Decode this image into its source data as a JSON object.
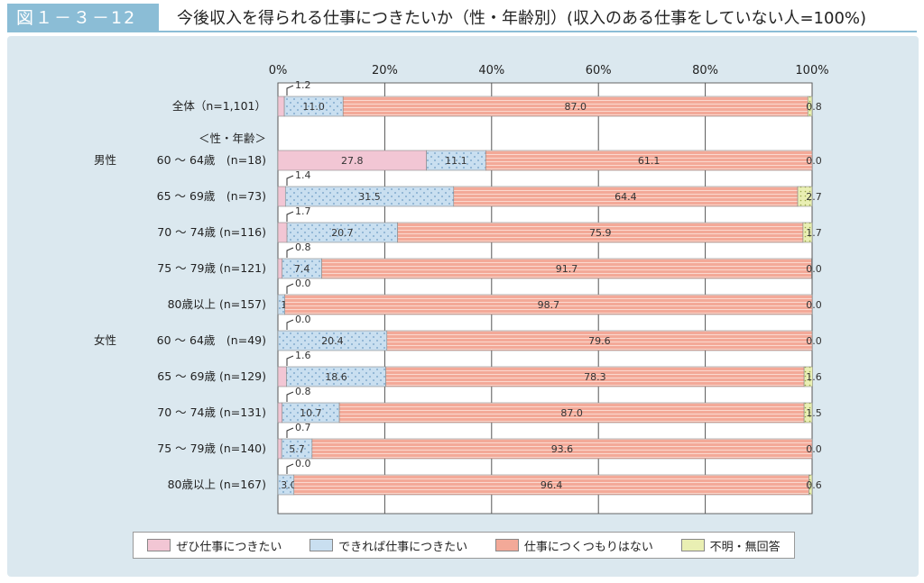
{
  "header": {
    "figure_label": "図１－３－12",
    "title": "今後収入を得られる仕事につきたいか（性・年齢別）(収入のある仕事をしていない人=100%)"
  },
  "colors": {
    "want": "#f2c6d4",
    "if_possible": "#c9dff0",
    "not_want": "#f3a998",
    "unknown": "#e9efb3",
    "panel": "#dbe8ef"
  },
  "legend": [
    {
      "key": "want",
      "label": "ぜひ仕事につきたい"
    },
    {
      "key": "if_possible",
      "label": "できれば仕事につきたい"
    },
    {
      "key": "not_want",
      "label": "仕事につくつもりはない"
    },
    {
      "key": "unknown",
      "label": "不明・無回答"
    }
  ],
  "chart_data": {
    "type": "bar",
    "orientation": "horizontal",
    "stacked": true,
    "xlim": [
      0,
      100
    ],
    "x_ticks": [
      "0%",
      "20%",
      "40%",
      "60%",
      "80%",
      "100%"
    ],
    "section_label": "＜性・年齢＞",
    "series": [
      {
        "name": "ぜひ仕事につきたい",
        "key": "want"
      },
      {
        "name": "できれば仕事につきたい",
        "key": "if_possible"
      },
      {
        "name": "仕事につくつもりはない",
        "key": "not_want"
      },
      {
        "name": "不明・無回答",
        "key": "unknown"
      }
    ],
    "rows": [
      {
        "group": "",
        "label": "全体（n=1,101）",
        "values": [
          1.2,
          11.0,
          87.0,
          0.8
        ]
      },
      {
        "group": "男性",
        "label": "60 ～ 64歳　(n=18)",
        "values": [
          27.8,
          11.1,
          61.1,
          0.0
        ]
      },
      {
        "group": "",
        "label": "65 ～ 69歳　(n=73)",
        "values": [
          1.4,
          31.5,
          64.4,
          2.7
        ]
      },
      {
        "group": "",
        "label": "70 ～ 74歳 (n=116)",
        "values": [
          1.7,
          20.7,
          75.9,
          1.7
        ]
      },
      {
        "group": "",
        "label": "75 ～ 79歳 (n=121)",
        "values": [
          0.8,
          7.4,
          91.7,
          0.0
        ]
      },
      {
        "group": "",
        "label": "80歳以上 (n=157)",
        "values": [
          0.0,
          1.3,
          98.7,
          0.0
        ]
      },
      {
        "group": "女性",
        "label": "60 ～ 64歳　(n=49)",
        "values": [
          0.0,
          20.4,
          79.6,
          0.0
        ]
      },
      {
        "group": "",
        "label": "65 ～ 69歳 (n=129)",
        "values": [
          1.6,
          18.6,
          78.3,
          1.6
        ]
      },
      {
        "group": "",
        "label": "70 ～ 74歳 (n=131)",
        "values": [
          0.8,
          10.7,
          87.0,
          1.5
        ]
      },
      {
        "group": "",
        "label": "75 ～ 79歳 (n=140)",
        "values": [
          0.7,
          5.7,
          93.6,
          0.0
        ]
      },
      {
        "group": "",
        "label": "80歳以上 (n=167)",
        "values": [
          0.0,
          3.0,
          96.4,
          0.6
        ]
      }
    ]
  }
}
